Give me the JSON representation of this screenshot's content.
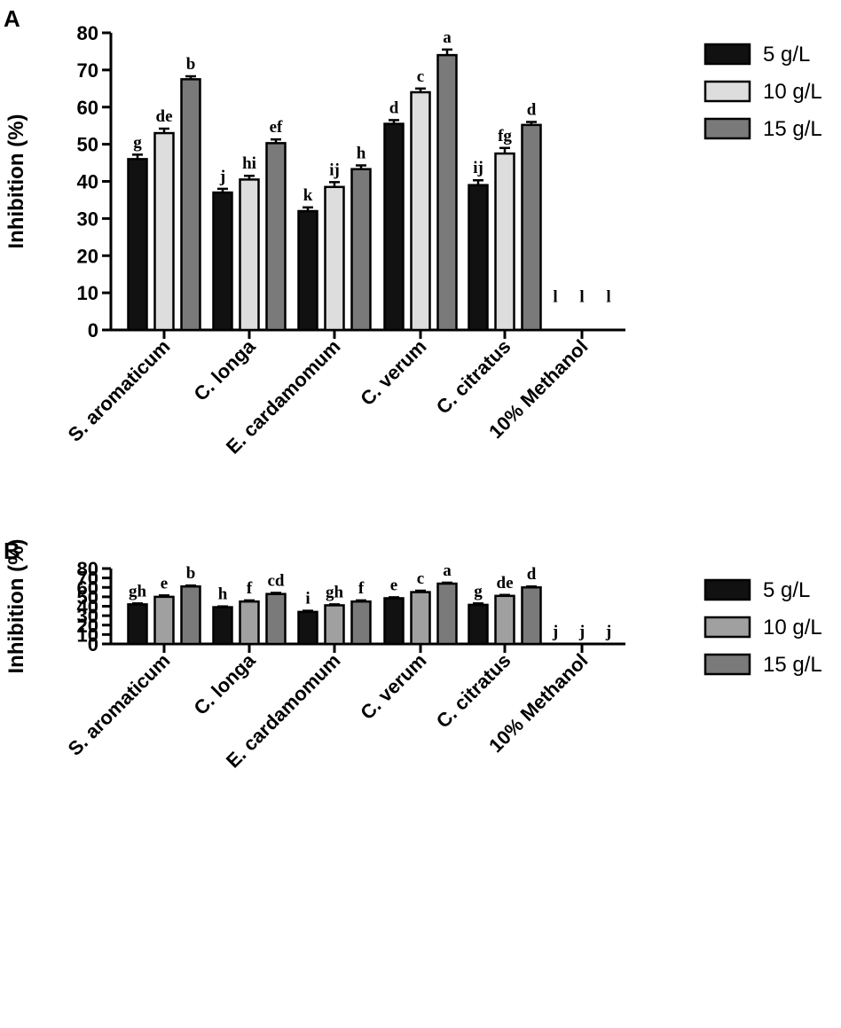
{
  "chart_data": [
    {
      "panel": "A",
      "type": "bar",
      "ylabel": "Inhibition (%)",
      "ylim": [
        0,
        80
      ],
      "yticks": [
        "0",
        "10",
        "20",
        "30",
        "40",
        "50",
        "60",
        "70",
        "80"
      ],
      "categories": [
        "S. aromaticum",
        "C. longa",
        "E. cardamomum",
        "C. verum",
        "C. citratus",
        "10% Methanol"
      ],
      "series": [
        {
          "name": "5 g/L",
          "color": "#111111",
          "values": [
            46,
            37,
            32,
            55.5,
            39,
            0
          ],
          "errors": [
            1.2,
            1.0,
            1.0,
            1.0,
            1.3,
            0
          ],
          "letters": [
            "g",
            "j",
            "k",
            "d",
            "ij",
            "l"
          ]
        },
        {
          "name": "10 g/L",
          "color": "#dddddd",
          "values": [
            53,
            40.5,
            38.5,
            64,
            47.5,
            0
          ],
          "errors": [
            1.2,
            1.0,
            1.3,
            1.0,
            1.5,
            0
          ],
          "letters": [
            "de",
            "hi",
            "ij",
            "c",
            "fg",
            "l"
          ]
        },
        {
          "name": "15 g/L",
          "color": "#7a7a7a",
          "values": [
            67.5,
            50.3,
            43.3,
            74,
            55.2,
            0
          ],
          "errors": [
            0.8,
            1.0,
            1.0,
            1.5,
            0.8,
            0
          ],
          "letters": [
            "b",
            "ef",
            "h",
            "a",
            "d",
            "l"
          ]
        }
      ]
    },
    {
      "panel": "B",
      "type": "bar",
      "ylabel": "Inhibition (%)",
      "ylim": [
        0,
        80
      ],
      "yticks": [
        "0",
        "10",
        "20",
        "30",
        "40",
        "50",
        "60",
        "70",
        "80"
      ],
      "categories": [
        "S. aromaticum",
        "C. longa",
        "E. cardamomum",
        "C. verum",
        "C. citratus",
        "10% Methanol"
      ],
      "series": [
        {
          "name": "5 g/L",
          "color": "#111111",
          "values": [
            42,
            39,
            34,
            48.5,
            41.5,
            0
          ],
          "errors": [
            1.0,
            0.8,
            1.2,
            1.0,
            1.5,
            0
          ],
          "letters": [
            "gh",
            "h",
            "i",
            "e",
            "g",
            "j"
          ]
        },
        {
          "name": "10 g/L",
          "color": "#a0a0a0",
          "values": [
            50,
            45,
            41,
            55,
            51,
            0
          ],
          "errors": [
            1.5,
            1.2,
            1.0,
            1.5,
            1.0,
            0
          ],
          "letters": [
            "e",
            "f",
            "gh",
            "c",
            "de",
            "j"
          ]
        },
        {
          "name": "15 g/L",
          "color": "#7a7a7a",
          "values": [
            61,
            53,
            45,
            64,
            60,
            0
          ],
          "errors": [
            1.0,
            1.2,
            1.2,
            1.0,
            1.0,
            0
          ],
          "letters": [
            "b",
            "cd",
            "f",
            "a",
            "d",
            "j"
          ]
        }
      ]
    }
  ]
}
